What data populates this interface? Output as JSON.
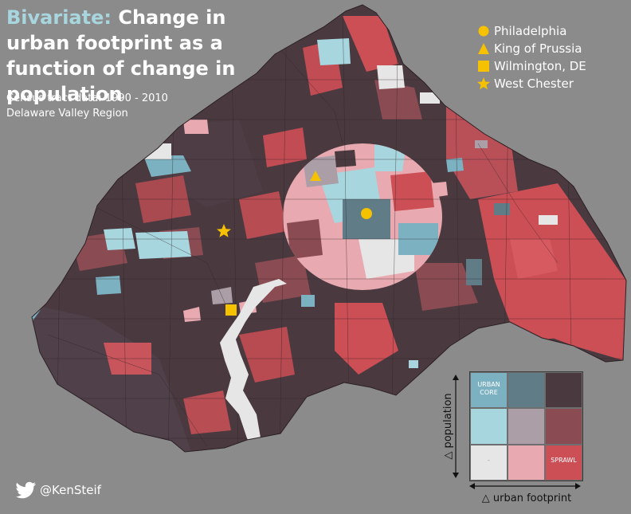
{
  "title": {
    "accent": "Bivariate:",
    "rest": " Change in urban footprint as a function of change in population"
  },
  "subtitle": {
    "line1": "Census tract data:  1990 - 2010",
    "line2": "Delaware Valley Region"
  },
  "places": [
    {
      "name": "Philadelphia",
      "symbol": "circle"
    },
    {
      "name": "King of Prussia",
      "symbol": "triangle"
    },
    {
      "name": "Wilmington, DE",
      "symbol": "square"
    },
    {
      "name": "West Chester",
      "symbol": "star"
    }
  ],
  "colors": {
    "background": "#8c8b8b",
    "marker": "#f6c200",
    "river": "#e6e6e6",
    "grid": [
      [
        "#7cb1c1",
        "#5f7c87",
        "#4a3a40"
      ],
      [
        "#a8d6df",
        "#ab9ea6",
        "#8a4c52"
      ],
      [
        "#e6e6e6",
        "#e8aab0",
        "#cc4f55"
      ]
    ]
  },
  "legend": {
    "urban_core": "URBAN CORE",
    "sprawl": "SPRAWL",
    "empty_mark": "-",
    "y_label": "△ population",
    "x_label": "△ urban footprint"
  },
  "credit": {
    "handle": "@KenSteif",
    "icon": "twitter-bird-icon"
  }
}
